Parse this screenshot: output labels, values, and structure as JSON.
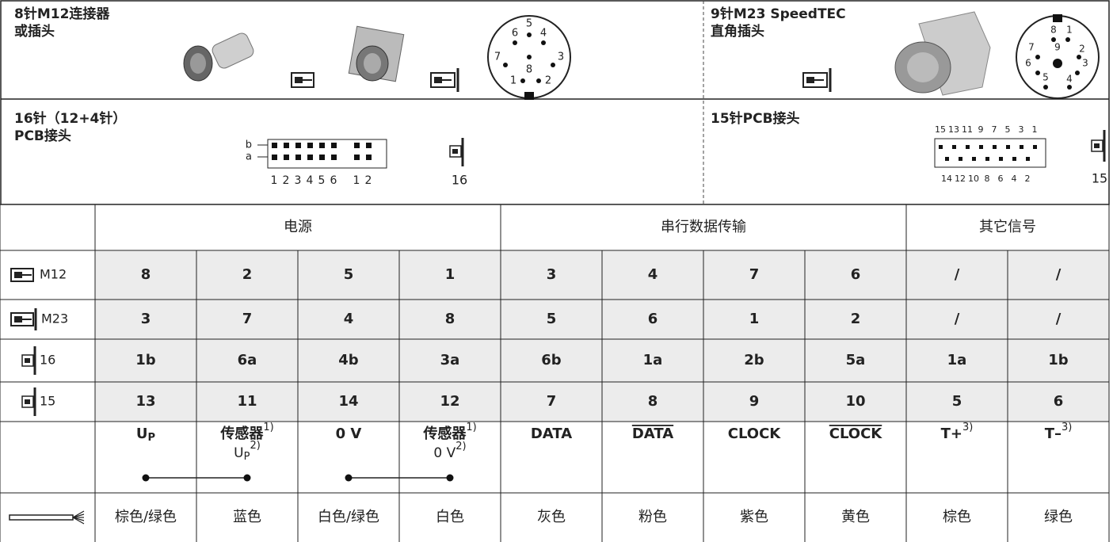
{
  "top": {
    "m12": {
      "title": [
        "8针M12连接器",
        "或插头"
      ],
      "pins": [
        "1",
        "2",
        "3",
        "4",
        "5",
        "6",
        "7",
        "8"
      ]
    },
    "m23": {
      "title": [
        "9针M23 SpeedTEC",
        "直角插头"
      ],
      "pins": [
        "1",
        "2",
        "3",
        "4",
        "5",
        "6",
        "7",
        "8",
        "9"
      ]
    },
    "pcb16": {
      "title": [
        "16针（12+4针）",
        "PCB接头"
      ],
      "rows": [
        "b",
        "a"
      ],
      "pins": [
        "1",
        "2",
        "3",
        "4",
        "5",
        "6",
        "1",
        "2"
      ],
      "label": "16"
    },
    "pcb15": {
      "title": [
        "15针PCB接头"
      ],
      "top_pins": [
        "15",
        "13",
        "11",
        "9",
        "7",
        "5",
        "3",
        "1"
      ],
      "bottom_pins": [
        "14",
        "12",
        "10",
        "8",
        "6",
        "4",
        "2"
      ],
      "label": "15"
    }
  },
  "table": {
    "groups": [
      "电源",
      "串行数据传输",
      "其它信号"
    ],
    "rows": [
      {
        "label": "M12",
        "cells": [
          "8",
          "2",
          "5",
          "1",
          "3",
          "4",
          "7",
          "6",
          "/",
          "/"
        ]
      },
      {
        "label": "M23",
        "cells": [
          "3",
          "7",
          "4",
          "8",
          "5",
          "6",
          "1",
          "2",
          "/",
          "/"
        ]
      },
      {
        "label": "16",
        "cells": [
          "1b",
          "6a",
          "4b",
          "3a",
          "6b",
          "1a",
          "2b",
          "5a",
          "1a",
          "1b"
        ]
      },
      {
        "label": "15",
        "cells": [
          "13",
          "11",
          "14",
          "12",
          "7",
          "8",
          "9",
          "10",
          "5",
          "6"
        ]
      }
    ],
    "signals": [
      {
        "label": "U",
        "sub": "P"
      },
      {
        "label": "传感器",
        "sup": "1)",
        "line2": "U",
        "line2_sub": "P",
        "line2_sup": "2)"
      },
      {
        "label": "0 V"
      },
      {
        "label": "传感器",
        "sup": "1)",
        "line2": "0 V",
        "line2_sup": "2)"
      },
      {
        "label": "DATA"
      },
      {
        "label": "DATA",
        "overline": true
      },
      {
        "label": "CLOCK"
      },
      {
        "label": "CLOCK",
        "overline": true
      },
      {
        "label": "T+",
        "sup": "3)"
      },
      {
        "label": "T–",
        "sup": "3)"
      }
    ],
    "colors": [
      "棕色/绿色",
      "蓝色",
      "白色/绿色",
      "白色",
      "灰色",
      "粉色",
      "紫色",
      "黄色",
      "棕色",
      "绿色"
    ]
  }
}
